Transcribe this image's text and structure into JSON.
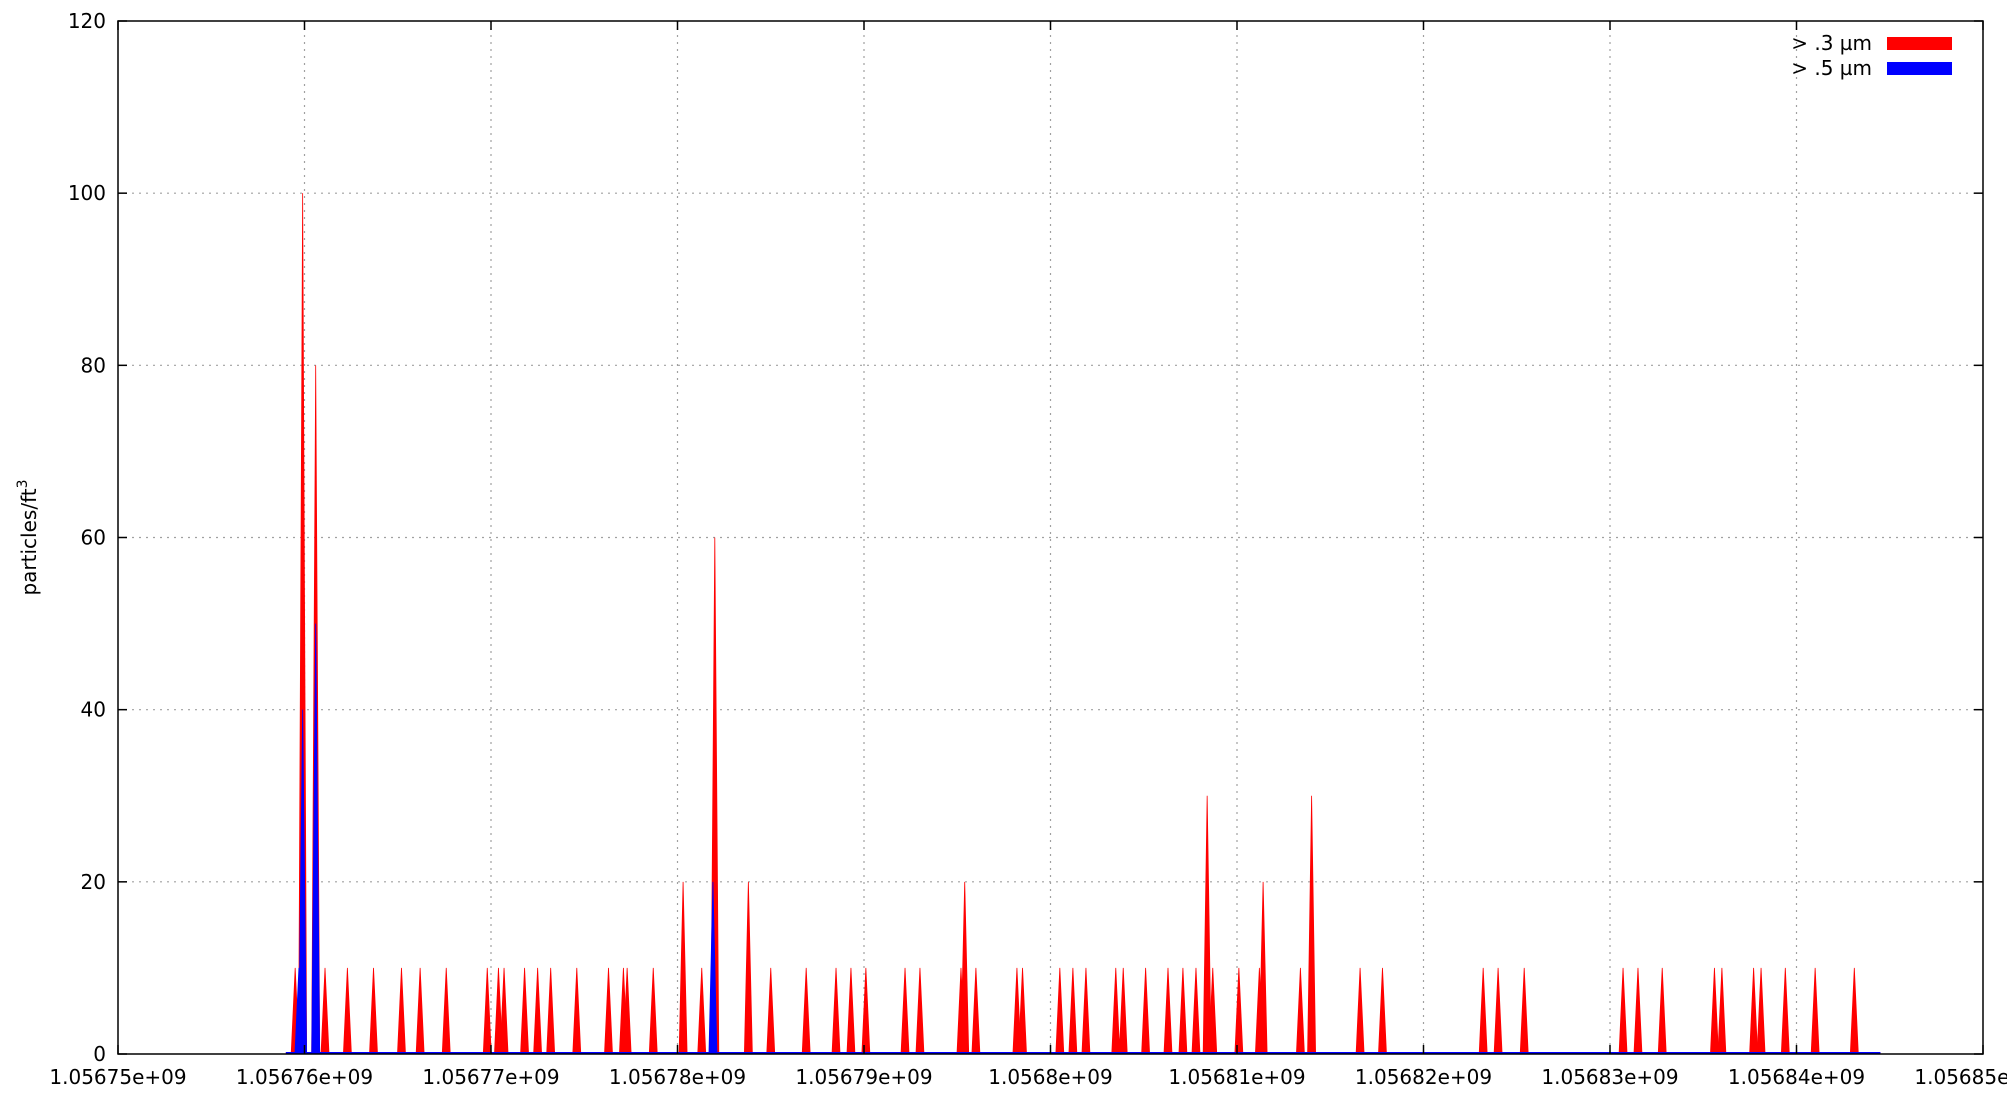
{
  "chart_data": {
    "type": "area",
    "ylabel": "particles/ft",
    "ylabel_sup": "3",
    "xlim": [
      1056750000,
      1056850000
    ],
    "ylim": [
      0,
      120
    ],
    "x_ticks": [
      1056750000,
      1056760000,
      1056770000,
      1056780000,
      1056790000,
      1056800000,
      1056810000,
      1056820000,
      1056830000,
      1056840000,
      1056850000
    ],
    "x_tick_labels": [
      "1.05675e+09",
      "1.05676e+09",
      "1.05677e+09",
      "1.05678e+09",
      "1.05679e+09",
      "1.0568e+09",
      "1.05681e+09",
      "1.05682e+09",
      "1.05683e+09",
      "1.05684e+09",
      "1.05685e+09"
    ],
    "y_ticks": [
      0,
      20,
      40,
      60,
      80,
      100,
      120
    ],
    "y_tick_labels": [
      "0",
      "20",
      "40",
      "60",
      "80",
      "100",
      "120"
    ],
    "grid": true,
    "legend_position": "top-right",
    "series": [
      {
        "name": "> .3 µm",
        "color": "#ff0000",
        "points": [
          [
            1056759500,
            10
          ],
          [
            1056759900,
            100
          ],
          [
            1056760600,
            80
          ],
          [
            1056761100,
            10
          ],
          [
            1056762300,
            10
          ],
          [
            1056763700,
            10
          ],
          [
            1056765200,
            10
          ],
          [
            1056766200,
            10
          ],
          [
            1056767600,
            10
          ],
          [
            1056769800,
            10
          ],
          [
            1056770400,
            10
          ],
          [
            1056770700,
            10
          ],
          [
            1056771800,
            10
          ],
          [
            1056772500,
            10
          ],
          [
            1056773200,
            10
          ],
          [
            1056774600,
            10
          ],
          [
            1056776300,
            10
          ],
          [
            1056777100,
            10
          ],
          [
            1056777300,
            10
          ],
          [
            1056778700,
            10
          ],
          [
            1056780300,
            20
          ],
          [
            1056781300,
            10
          ],
          [
            1056782000,
            60
          ],
          [
            1056783800,
            20
          ],
          [
            1056785000,
            10
          ],
          [
            1056786900,
            10
          ],
          [
            1056788500,
            10
          ],
          [
            1056789300,
            10
          ],
          [
            1056790100,
            10
          ],
          [
            1056792200,
            10
          ],
          [
            1056793000,
            10
          ],
          [
            1056795200,
            10
          ],
          [
            1056795400,
            20
          ],
          [
            1056796000,
            10
          ],
          [
            1056798200,
            10
          ],
          [
            1056798500,
            10
          ],
          [
            1056800500,
            10
          ],
          [
            1056801200,
            10
          ],
          [
            1056801900,
            10
          ],
          [
            1056803500,
            10
          ],
          [
            1056803900,
            10
          ],
          [
            1056805100,
            10
          ],
          [
            1056806300,
            10
          ],
          [
            1056807100,
            10
          ],
          [
            1056807800,
            10
          ],
          [
            1056808400,
            30
          ],
          [
            1056808700,
            10
          ],
          [
            1056810100,
            10
          ],
          [
            1056811200,
            10
          ],
          [
            1056811400,
            20
          ],
          [
            1056813400,
            10
          ],
          [
            1056814000,
            30
          ],
          [
            1056816600,
            10
          ],
          [
            1056817800,
            10
          ],
          [
            1056823200,
            10
          ],
          [
            1056824000,
            10
          ],
          [
            1056825400,
            10
          ],
          [
            1056830700,
            10
          ],
          [
            1056831500,
            10
          ],
          [
            1056832800,
            10
          ],
          [
            1056835600,
            10
          ],
          [
            1056836000,
            10
          ],
          [
            1056837700,
            10
          ],
          [
            1056838100,
            10
          ],
          [
            1056839400,
            10
          ],
          [
            1056841000,
            10
          ],
          [
            1056843100,
            10
          ]
        ]
      },
      {
        "name": "> .5 µm",
        "color": "#0000ff",
        "points": [
          [
            1056759700,
            10
          ],
          [
            1056759900,
            40
          ],
          [
            1056760600,
            50
          ],
          [
            1056781900,
            20
          ]
        ]
      }
    ]
  }
}
